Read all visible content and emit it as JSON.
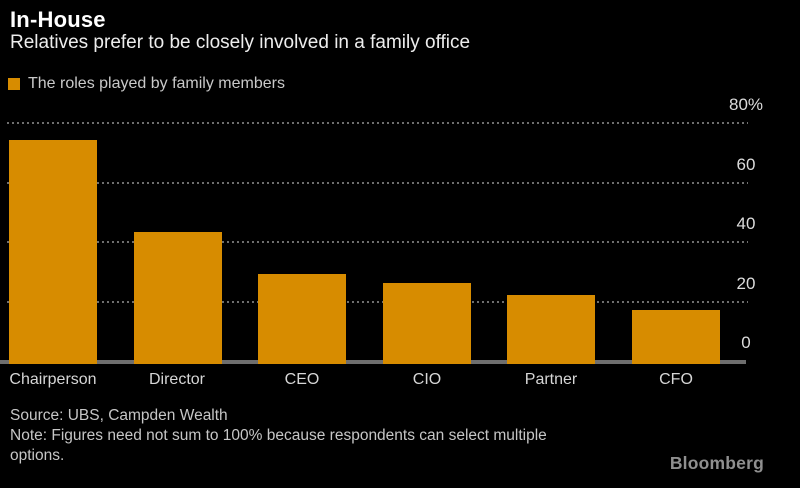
{
  "header": {
    "title": "In-House",
    "subtitle": "Relatives prefer to be closely involved in a family office"
  },
  "legend": {
    "label": "The roles played by family members",
    "swatch_color": "#d78c00"
  },
  "chart_data": {
    "type": "bar",
    "title": "In-House",
    "subtitle": "Relatives prefer to be closely involved in a family office",
    "series_label": "The roles played by family members",
    "categories": [
      "Chairperson",
      "Director",
      "CEO",
      "CIO",
      "Partner",
      "CFO"
    ],
    "values": [
      74,
      43,
      29,
      26,
      22,
      17
    ],
    "unit": "%",
    "ylim": [
      0,
      80
    ],
    "yticks": [
      {
        "value": 0,
        "label": "0"
      },
      {
        "value": 20,
        "label": "20"
      },
      {
        "value": 40,
        "label": "40"
      },
      {
        "value": 60,
        "label": "60"
      },
      {
        "value": 80,
        "label": "80%"
      }
    ],
    "axis_side": "right",
    "grid": "dotted-horizontal",
    "legend_position": "top-left",
    "bar_color": "#d78c00",
    "background_color": "#000000"
  },
  "footer": {
    "source": "Source: UBS, Campden Wealth",
    "note_line1": "Note: Figures need not sum to 100% because respondents can select multiple",
    "note_line2": "options.",
    "brand": "Bloomberg"
  }
}
